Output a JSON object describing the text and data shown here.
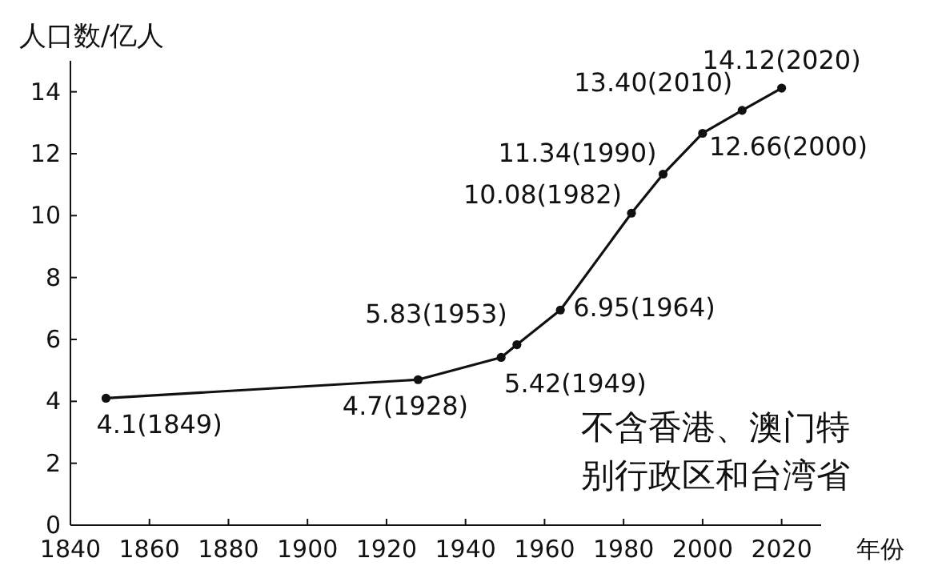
{
  "chart_data": {
    "type": "line",
    "ylabel": "人口数/亿人",
    "xlabel": "年份",
    "x": [
      1849,
      1928,
      1949,
      1953,
      1964,
      1982,
      1990,
      2000,
      2010,
      2020
    ],
    "values": [
      4.1,
      4.7,
      5.42,
      5.83,
      6.95,
      10.08,
      11.34,
      12.66,
      13.4,
      14.12
    ],
    "value_labels": [
      "4.1(1849)",
      "4.7(1928)",
      "5.42(1949)",
      "5.83(1953)",
      "6.95(1964)",
      "10.08(1982)",
      "11.34(1990)",
      "12.66(2000)",
      "13.40(2010)",
      "14.12(2020)"
    ],
    "color": "#111111",
    "marker": "circle",
    "line_style": "solid",
    "grid": false,
    "xlim": [
      1840,
      2030
    ],
    "xticks": [
      1840,
      1860,
      1880,
      1900,
      1920,
      1940,
      1960,
      1980,
      2000,
      2020
    ],
    "ylim": [
      0,
      15
    ],
    "yticks": [
      0,
      2,
      4,
      6,
      8,
      10,
      12,
      14
    ],
    "annotations": [
      "不含香港、澳门特别行政区和台湾省"
    ]
  }
}
